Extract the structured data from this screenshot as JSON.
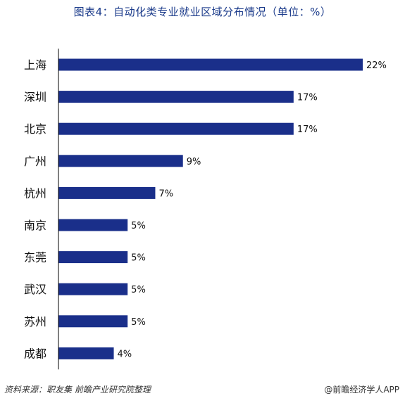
{
  "title": "图表4：自动化类专业就业区域分布情况（单位：%）",
  "source": "资料来源：职友集 前瞻产业研究院整理",
  "brand": "@前瞻经济学人APP",
  "colors": {
    "bar": "#1a2f8a",
    "axis": "#000000"
  },
  "chart_data": {
    "type": "bar",
    "orientation": "horizontal",
    "categories": [
      "上海",
      "深圳",
      "北京",
      "广州",
      "杭州",
      "南京",
      "东莞",
      "武汉",
      "苏州",
      "成都"
    ],
    "values": [
      22,
      17,
      17,
      9,
      7,
      5,
      5,
      5,
      5,
      4
    ],
    "data_labels": [
      "22%",
      "17%",
      "17%",
      "9%",
      "7%",
      "5%",
      "5%",
      "5%",
      "5%",
      "4%"
    ],
    "xlim": [
      0,
      22
    ],
    "grid": false,
    "legend": "none"
  }
}
